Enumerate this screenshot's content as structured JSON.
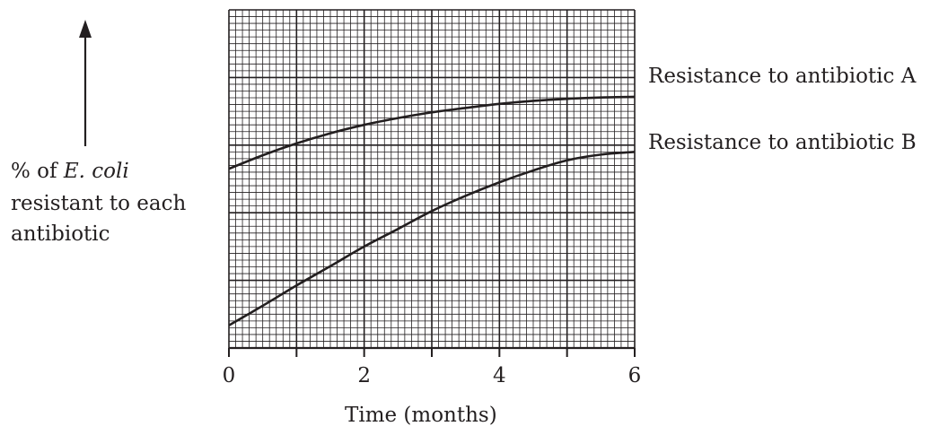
{
  "chart_data": {
    "type": "line",
    "xlabel": "Time (months)",
    "ylabel": {
      "prefix": "% of ",
      "italic": "E. coli",
      "line2": "resistant to each",
      "line3": "antibiotic"
    },
    "x_ticks": [
      "0",
      "2",
      "4",
      "6"
    ],
    "xlim": [
      0,
      6
    ],
    "ylim": [
      0,
      10
    ],
    "grid": true,
    "series": [
      {
        "name": "Resistance to antibiotic A",
        "x": [
          0,
          0.5,
          1,
          1.5,
          2,
          2.5,
          3,
          3.5,
          4,
          4.5,
          5,
          5.5,
          6
        ],
        "y": [
          5.3,
          5.7,
          6.05,
          6.35,
          6.6,
          6.8,
          6.97,
          7.1,
          7.22,
          7.31,
          7.37,
          7.41,
          7.43
        ]
      },
      {
        "name": "Resistance to antibiotic B",
        "x": [
          0,
          0.5,
          1,
          1.5,
          2,
          2.5,
          3,
          3.5,
          4,
          4.5,
          5,
          5.5,
          6
        ],
        "y": [
          0.67,
          1.25,
          1.85,
          2.42,
          3.0,
          3.52,
          4.05,
          4.5,
          4.9,
          5.25,
          5.55,
          5.72,
          5.8
        ]
      }
    ],
    "colors": {
      "ink": "#231f20",
      "grid": "#231f20"
    }
  }
}
